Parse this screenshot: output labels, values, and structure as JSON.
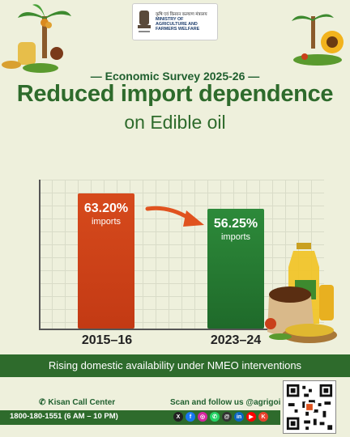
{
  "header": {
    "ministry_hindi": "कृषि एवं किसान कल्याण मंत्रालय",
    "ministry_en_line1": "MINISTRY OF",
    "ministry_en_line2": "AGRICULTURE AND",
    "ministry_en_line3": "FARMERS WELFARE",
    "emblem_caption": "सत्यमेव जयते"
  },
  "survey_label": "— Economic Survey 2025-26 —",
  "title": "Reduced import dependence",
  "subtitle": "on Edible oil",
  "chart_data": {
    "type": "bar",
    "categories": [
      "2015–16",
      "2023–24"
    ],
    "values": [
      63.2,
      56.25
    ],
    "value_labels": [
      "63.20%",
      "56.25%"
    ],
    "bar_sublabel": "imports",
    "colors": [
      "#c9401a",
      "#237a30"
    ]
  },
  "banner": "Rising domestic availability under NMEO interventions",
  "footer": {
    "kisan_label": "Kisan Call Center",
    "follow_label": "Scan and follow us @agrigoi",
    "phone": "1800-180-1551 (6 AM – 10 PM)",
    "socials": [
      {
        "icon": "x-icon",
        "glyph": "X",
        "color": "#222"
      },
      {
        "icon": "facebook-icon",
        "glyph": "f",
        "color": "#1877f2"
      },
      {
        "icon": "instagram-icon",
        "glyph": "◎",
        "color": "#d6249f"
      },
      {
        "icon": "whatsapp-icon",
        "glyph": "✆",
        "color": "#25d366"
      },
      {
        "icon": "threads-icon",
        "glyph": "@",
        "color": "#333"
      },
      {
        "icon": "linkedin-icon",
        "glyph": "in",
        "color": "#0a66c2"
      },
      {
        "icon": "youtube-icon",
        "glyph": "▶",
        "color": "#ff0000"
      },
      {
        "icon": "koo-icon",
        "glyph": "K",
        "color": "#e8412c"
      }
    ]
  }
}
